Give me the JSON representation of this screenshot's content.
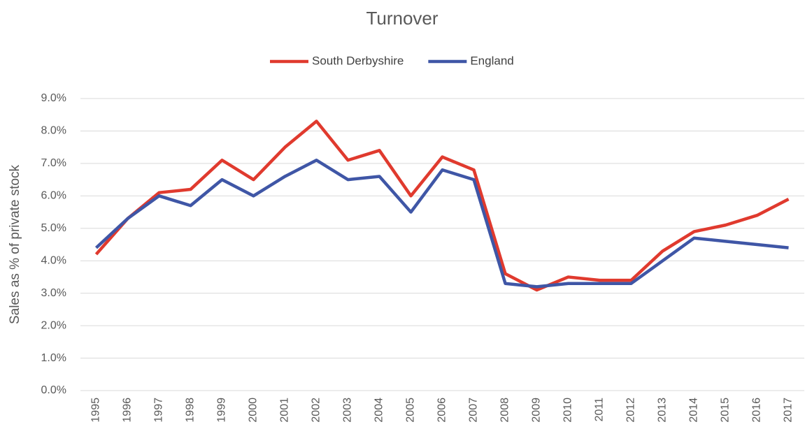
{
  "chart_data": {
    "type": "line",
    "title": "Turnover",
    "y_label": "Sales as % of private stock",
    "categories": [
      "1995",
      "1996",
      "1997",
      "1998",
      "1999",
      "2000",
      "2001",
      "2002",
      "2003",
      "2004",
      "2005",
      "2006",
      "2007",
      "2008",
      "2009",
      "2010",
      "2011",
      "2012",
      "2013",
      "2014",
      "2015",
      "2016",
      "2017"
    ],
    "series": [
      {
        "name": "South Derbyshire",
        "color": "#e03a2e",
        "values": [
          4.2,
          5.3,
          6.1,
          6.2,
          7.1,
          6.5,
          7.5,
          8.3,
          7.1,
          7.4,
          6.0,
          7.2,
          6.8,
          3.6,
          3.1,
          3.5,
          3.4,
          3.4,
          4.3,
          4.9,
          5.1,
          5.4,
          5.9
        ]
      },
      {
        "name": "England",
        "color": "#3f56a6",
        "values": [
          4.4,
          5.3,
          6.0,
          5.7,
          6.5,
          6.0,
          6.6,
          7.1,
          6.5,
          6.6,
          5.5,
          6.8,
          6.5,
          3.3,
          3.2,
          3.3,
          3.3,
          3.3,
          4.0,
          4.7,
          4.6,
          4.5,
          4.4
        ]
      }
    ],
    "ylim": [
      0,
      9
    ],
    "yticks": [
      {
        "value": 0,
        "label": "0.0%"
      },
      {
        "value": 1,
        "label": "1.0%"
      },
      {
        "value": 2,
        "label": "2.0%"
      },
      {
        "value": 3,
        "label": "3.0%"
      },
      {
        "value": 4,
        "label": "4.0%"
      },
      {
        "value": 5,
        "label": "5.0%"
      },
      {
        "value": 6,
        "label": "6.0%"
      },
      {
        "value": 7,
        "label": "7.0%"
      },
      {
        "value": 8,
        "label": "8.0%"
      },
      {
        "value": 9,
        "label": "9.0%"
      }
    ],
    "grid": true,
    "legend": "top"
  }
}
